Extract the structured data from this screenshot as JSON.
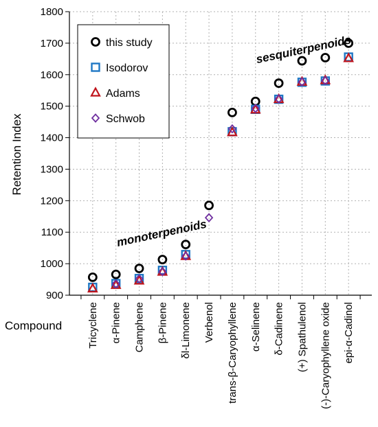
{
  "chart_data": {
    "type": "scatter",
    "ylabel": "Retention Index",
    "xlabel": "Compound",
    "ylim": [
      900,
      1800
    ],
    "yticks": [
      900,
      1000,
      1100,
      1200,
      1300,
      1400,
      1500,
      1600,
      1700,
      1800
    ],
    "grid": true,
    "legend_position": "top-left",
    "categories": [
      "Tricyclene",
      "α-Pinene",
      "Camphene",
      "β-Pinene",
      "δl-Limonene",
      "Verbenol",
      "trans-β-Caryophyllene",
      "α-Selinene",
      "δ-Cadinene",
      "(+) Spathulenol",
      "(-)-Caryophyllene oxide",
      "epi-α-Cadinol"
    ],
    "series": [
      {
        "name": "this study",
        "marker": "circle",
        "color": "#000000",
        "values": [
          957,
          966,
          985,
          1013,
          1061,
          1185,
          1480,
          1515,
          1573,
          1644,
          1654,
          1700
        ]
      },
      {
        "name": "Isodorov",
        "marker": "square",
        "color": "#1f77c4",
        "values": [
          925,
          937,
          953,
          979,
          1029,
          null,
          1419,
          1490,
          1522,
          1576,
          1580,
          1656
        ]
      },
      {
        "name": "Adams",
        "marker": "triangle",
        "color": "#c0141c",
        "values": [
          921,
          932,
          946,
          974,
          1024,
          null,
          1417,
          1489,
          1522,
          1577,
          1582,
          1652
        ]
      },
      {
        "name": "Schwob",
        "marker": "diamond",
        "color": "#7030a0",
        "values": [
          null,
          936,
          952,
          975,
          1024,
          1146,
          1428,
          1493,
          1523,
          1577,
          1581,
          null
        ]
      }
    ],
    "annotations": [
      {
        "text": "monoterpenoids",
        "x_category": 3,
        "y": 1085
      },
      {
        "text": "sesquiterpenoids",
        "x_category": 9.1,
        "y": 1668
      }
    ]
  }
}
